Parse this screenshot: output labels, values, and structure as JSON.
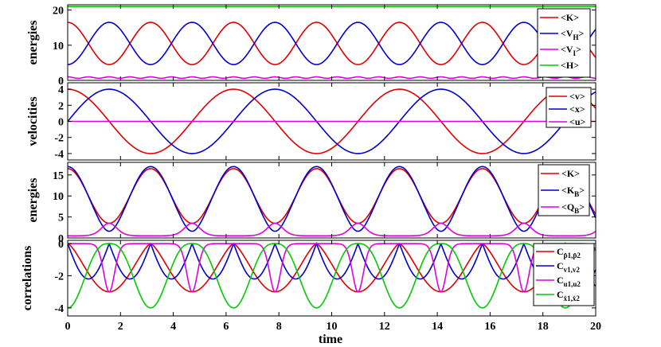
{
  "chart_data": {
    "type": "line",
    "x_axis": {
      "label": "time",
      "range": [
        0,
        20
      ],
      "ticks": [
        0,
        2,
        4,
        6,
        8,
        10,
        12,
        14,
        16,
        18,
        20
      ]
    },
    "panels": [
      {
        "ylabel": "energies",
        "ylim": [
          0,
          21.5
        ],
        "yticks": [
          0,
          10,
          20
        ],
        "legend_position": "top-right",
        "series": [
          {
            "name": "<K>",
            "color": "#e00000",
            "equation": "10.5 + 6 * cos(2 * t)"
          },
          {
            "name": "<V_H>",
            "color": "#0000cc",
            "equation": "10.5 - 6 * cos(2 * t)"
          },
          {
            "name": "<V_I>",
            "color": "#e000e0",
            "equation": "0.6 + 0.4 * cos(4 * t) ^ 2"
          },
          {
            "name": "<H>",
            "color": "#00cc00",
            "equation": "21.0"
          }
        ]
      },
      {
        "ylabel": "velocities",
        "ylim": [
          -4.8,
          4.8
        ],
        "yticks": [
          -4,
          -2,
          0,
          2,
          4
        ],
        "legend_position": "top-right",
        "series": [
          {
            "name": "<v>",
            "color": "#e00000",
            "equation": "4 * cos(t)"
          },
          {
            "name": "<x>",
            "color": "#0000cc",
            "equation": "4 * sin(t)"
          },
          {
            "name": "<u>",
            "color": "#e000e0",
            "equation": "0"
          }
        ]
      },
      {
        "ylabel": "energies",
        "ylim": [
          0,
          18
        ],
        "yticks": [
          0,
          5,
          10,
          15
        ],
        "legend_position": "top-right",
        "series": [
          {
            "name": "<K>",
            "color": "#e00000",
            "equation": "10 + 6.5 * cos(2 * t)"
          },
          {
            "name": "<K_B>",
            "color": "#0000cc",
            "equation": "10 + 7 * cos(2 * t) - 1.4 * exp(-3 * (1 + cos(2 * t)))"
          },
          {
            "name": "<Q_B>",
            "color": "#e000e0",
            "equation": "0.5 + 3 * exp(-3 * (1 + cos(2 * t)))"
          }
        ]
      },
      {
        "ylabel": "correlations",
        "ylim": [
          -4.5,
          0.2
        ],
        "yticks": [
          -4,
          -2,
          0
        ],
        "legend_position": "top-right",
        "series": [
          {
            "name": "C_{p1,p2}",
            "color": "#e00000",
            "equation": "-3 * (sin(t) ^ 2) ^ 0.7"
          },
          {
            "name": "C_{v1,v2}",
            "color": "#0000cc",
            "equation": "-2.2 * abs(sin(2 * t))"
          },
          {
            "name": "C_{u1,u2}",
            "color": "#e000e0",
            "equation": "-3 * exp(-6 * (1 + cos(2 * t)))"
          },
          {
            "name": "C_{x1,x2}",
            "color": "#00cc00",
            "equation": "-4 * (cos(t) ^ 2) ^ 1.4"
          }
        ]
      }
    ],
    "legends": [
      [
        {
          "main": "<K",
          "sub": "",
          "end": ">"
        },
        {
          "main": "<V",
          "sub": "H",
          "end": ">"
        },
        {
          "main": "<V",
          "sub": "I",
          "end": ">"
        },
        {
          "main": "<H",
          "sub": "",
          "end": ">"
        }
      ],
      [
        {
          "main": "<v",
          "sub": "",
          "end": ">"
        },
        {
          "main": "<x",
          "sub": "",
          "end": ">"
        },
        {
          "main": "<u",
          "sub": "",
          "end": ">"
        }
      ],
      [
        {
          "main": "<K",
          "sub": "",
          "end": ">"
        },
        {
          "main": "<K",
          "sub": "B",
          "end": ">"
        },
        {
          "main": "<Q",
          "sub": "B",
          "end": ">"
        }
      ],
      [
        {
          "main": "C",
          "sub": "p̂1,p̂2",
          "end": ""
        },
        {
          "main": "C",
          "sub": "v1,v2",
          "end": ""
        },
        {
          "main": "C",
          "sub": "u1,u2",
          "end": ""
        },
        {
          "main": "C",
          "sub": "ẋ1,ẋ2",
          "end": ""
        }
      ]
    ]
  }
}
